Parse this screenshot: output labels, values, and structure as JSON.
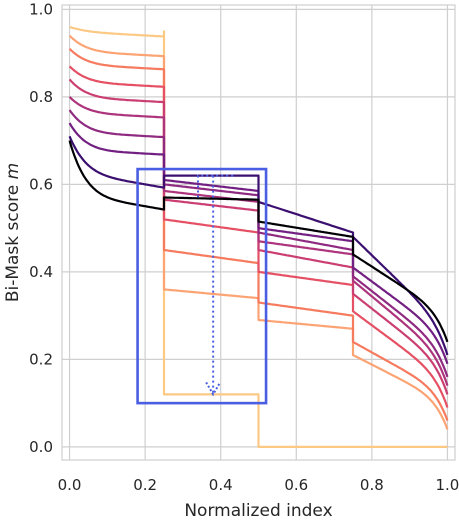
{
  "chart_data": {
    "type": "line",
    "xlabel": "Normalized index",
    "ylabel": "Bi-Mask score m",
    "ylabel_main": "Bi-Mask score ",
    "ylabel_italic": "m",
    "xlim": [
      -0.02,
      1.02
    ],
    "ylim": [
      -0.03,
      1.01
    ],
    "x_ticks": [
      0.0,
      0.2,
      0.4,
      0.6,
      0.8,
      1.0
    ],
    "x_tick_labels": [
      "0.0",
      "0.2",
      "0.4",
      "0.6",
      "0.8",
      "1.0"
    ],
    "y_ticks": [
      0.0,
      0.2,
      0.4,
      0.6,
      0.8,
      1.0
    ],
    "y_tick_labels": [
      "0.0",
      "0.2",
      "0.4",
      "0.6",
      "0.8",
      "1.0"
    ],
    "grid": true,
    "legend": "none",
    "colormap": "magma",
    "series": [
      {
        "color": "#fcc985",
        "steps": 2,
        "start": 0.96,
        "plateau": 0.95,
        "drop_levels": [
          0.12
        ],
        "end": 0.0
      },
      {
        "color": "#fca374",
        "steps": 4,
        "start": 0.94,
        "plateau": 0.905,
        "drop_levels": [
          0.36,
          0.34,
          0.29,
          0.27
        ],
        "end": 0.1
      },
      {
        "color": "#f67a5e",
        "steps": 4,
        "start": 0.91,
        "plateau": 0.875,
        "drop_levels": [
          0.45,
          0.42,
          0.33,
          0.3
        ],
        "end": 0.12
      },
      {
        "color": "#e55064",
        "steps": 8,
        "start": 0.87,
        "plateau": 0.835,
        "drop_levels": [
          0.52,
          0.49,
          0.4,
          0.37
        ],
        "end": 0.15
      },
      {
        "color": "#cb3e71",
        "steps": 8,
        "start": 0.84,
        "plateau": 0.8,
        "drop_levels": [
          0.565,
          0.54,
          0.45,
          0.41
        ],
        "end": 0.18
      },
      {
        "color": "#ad347c",
        "steps": 8,
        "start": 0.8,
        "plateau": 0.765,
        "drop_levels": [
          0.585,
          0.56,
          0.47,
          0.44
        ],
        "end": 0.2
      },
      {
        "color": "#8f2a81",
        "steps": 8,
        "start": 0.77,
        "plateau": 0.72,
        "drop_levels": [
          0.6,
          0.575,
          0.49,
          0.45
        ],
        "end": 0.22
      },
      {
        "color": "#711f81",
        "steps": 8,
        "start": 0.74,
        "plateau": 0.68,
        "drop_levels": [
          0.61,
          0.585,
          0.5,
          0.47
        ],
        "end": 0.25
      },
      {
        "color": "#3b0f70",
        "steps": 0,
        "start": 0.71,
        "plateau": 0.63,
        "drop_levels": [
          0.62,
          0.6,
          0.51,
          0.48
        ],
        "end": 0.27
      },
      {
        "color": "#000004",
        "steps": 0,
        "start": 0.7,
        "plateau": 0.58,
        "drop_levels": [
          0.565,
          0.555,
          0.5,
          0.44
        ],
        "end": 0.3
      }
    ],
    "annotations": {
      "highlight_box": {
        "x": [
          0.18,
          0.52
        ],
        "y": [
          0.1,
          0.635
        ],
        "color": "#4a5ee3"
      },
      "arrow": {
        "x": 0.38,
        "y_from": 0.62,
        "y_to": 0.12,
        "style": "dotted",
        "color": "#4a5ee3"
      },
      "inner_bracket": {
        "x": [
          0.34,
          0.44
        ],
        "y": [
          0.62,
          0.57
        ],
        "style": "dotted",
        "color": "#4a5ee3"
      }
    }
  }
}
